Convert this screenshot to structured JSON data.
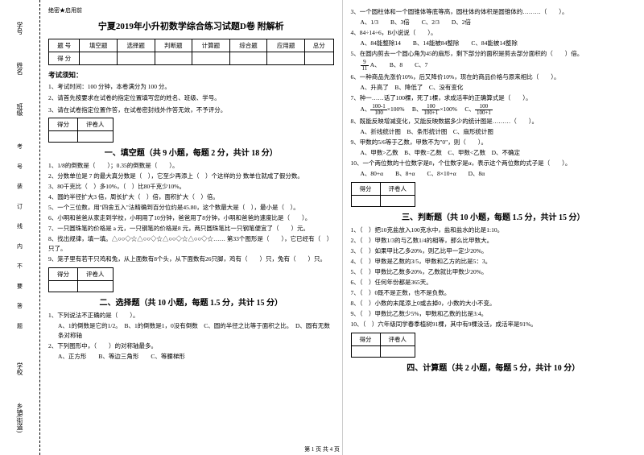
{
  "binding": {
    "labels": [
      "学号",
      "姓名",
      "班级",
      "学校",
      "乡镇(街道)"
    ],
    "dashtext": "考 号 装 订 线 内 不 要 答 题"
  },
  "secret": "绝密★启用前",
  "title": "宁夏2019年小升初数学综合练习试题D卷 附解析",
  "score_table": {
    "headers": [
      "题 号",
      "填空题",
      "选择题",
      "判断题",
      "计算题",
      "综合题",
      "应用题",
      "总分"
    ],
    "row2_label": "得 分"
  },
  "notice_head": "考试须知：",
  "notices": [
    "1、考试时间：100 分钟，本卷满分为 100 分。",
    "2、请首先按要求在试卷的指定位置填写您的姓名、班级、学号。",
    "3、请在试卷指定位置作答，在试卷密封线外作答无效，不予评分。"
  ],
  "scorebox_labels": [
    "得分",
    "评卷人"
  ],
  "sec1": {
    "title": "一、填空题（共 9 小题，每题 2 分，共计 18 分）",
    "q": [
      "1、1/8的倒数是（　　）；0.35的倒数是（　　）。",
      "2、分数单位是 7 的最大真分数是（　），它至少再添上（　）个这样的分 数单位就成了假分数。",
      "3、80千克比（　）多10%，（　）比80千克少10%。",
      "4、圆的半径扩大3 倍，周长扩大（　）倍，面积扩大（　）倍。",
      "5、一个三位数，用\"四舍五入\"法精确到百分位约是45.80，这个数最大是（　），最小是（　）。",
      "6、小明和爸爸从家走到学校，小明用了10分钟，爸爸用了8分钟，小明和爸爸的速度比是（　　）。",
      "7、一只圆珠笔的价格是 a 元，一只钢笔的价格是8 元，两只圆珠笔比一只钢笔便宜了（　　）元。",
      "8、找出规律，填一填。△○○◇☆△○○◇☆△○○◇☆△○○◇☆…… 第33个图形是（　　），它已经有（　）只了。",
      "9、笼子里有若干只鸡和兔，从上面数有8个头，从下面数有26只脚，鸡有（　　）只，兔有（　　）只。"
    ]
  },
  "sec2": {
    "title": "二、选择题（共 10 小题，每题 1.5 分，共计 15 分）",
    "q1": "1、下列说法不正确的是（　　）。",
    "q1opts": "A、1的倒数是它的1/2。　B、1的倒数是1，0没有倒数　C、圆的半径之比等于面积之比。　D、圆有无数条对称轴",
    "q2": "2、下列图形中，（　　）的对称轴最多。",
    "q2opts": "A、正方形　　B、等边三角形　　C、等腰梯形",
    "col2q": [
      "3、一个圆柱体和一个圆锥体等底等高，圆柱体的体积是圆锥体的………（　　）。",
      "4、84÷14÷6，B小说说（　　）。",
      "5、在圆内剪去一个圆心角为45的扇形，剩下部分的面积是剪去部分面积的（　　）倍。",
      "6、一种商品先涨价10%，后又降价10%，现在的商品价格与原来相比（　　）。",
      "7、种一……话了100棵，死了1棵，求成活率的正确算式是（　　）。",
      "8、既能反映增减变化，又能反映数据多少的统计图是………（　　）。",
      "9、甲数的5/6等于乙数，甲数不为\"0\"，则（　　）。",
      "10、一个两位数的十位数字是8，个位数字是α，表示这个两位数的式子是（　　）。"
    ],
    "q3opts": "A、1/3　　B、3倍　　C、2/3　　D、2倍",
    "q4opts": "A、84能整除14　　B、14能被84整除　　C、84能被14整除",
    "q5ans": "9/11",
    "q5opts": "A、　　B、8　　C、7",
    "q6opts": "A、升高了　B、降低了　C、没有变化",
    "q7opts_a": "100-1",
    "q7opts_b": "100",
    "q7opts_c": "100",
    "q7a": "A、　100　×100%　　B、100+1×100%　　C、100+1",
    "q8opts": "A、折线统计图　B、条形统计图　C、扇形统计图",
    "q9opts": "A、甲数>乙数　B、甲数=乙数　C、甲数<乙数　D、不确定",
    "q10opts": "A、80+α　　B、8+α　　C、8×10+α　　D、8α"
  },
  "sec3": {
    "title": "三、判断题（共 10 小题，每题 1.5 分，共计 15 分）",
    "q": [
      "1、（　）把10克盐放入100克水中，盐和盐水的比是1:10。",
      "2、（　）甲数1/3的与乙数1/4的相等，那么比甲数大。",
      "3、（　）如果甲比乙多20%，则乙比甲一定少20%。",
      "4、（　）甲数是乙数的3/5，甲数和乙方的比是5：3。",
      "5、（　）甲数比乙数多20%，乙数就比甲数少20%。",
      "6、（　）任何年份都是365天。",
      "7、（　）0既不是正数，也不是负数。",
      "8、（　）小数的末尾添上0或去掉0，小数的大小不变。",
      "9、（　）甲数比乙数少5%，甲数和乙数的比是3:4。",
      "10、（　）六年级同学春季植树91棵，其中有9棵没活，成活率是91%。"
    ]
  },
  "sec4": {
    "title": "四、计算题（共 2 小题，每题 5 分，共计 10 分）"
  },
  "footer": "第 1 页 共 4 页"
}
